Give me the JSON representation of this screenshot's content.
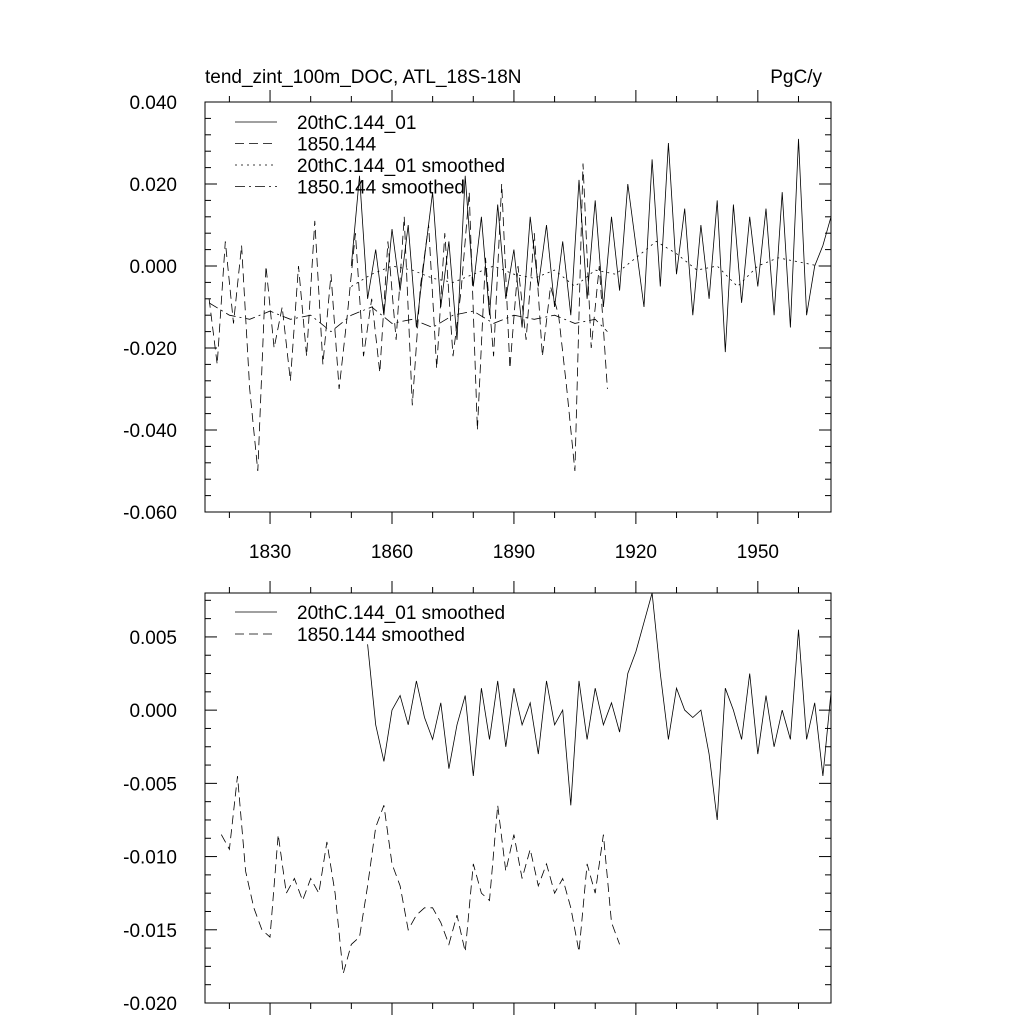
{
  "chart_data": [
    {
      "type": "line",
      "title": "tend_zint_100m_DOC, ATL_18S-18N",
      "units": "PgC/y",
      "xlabel": "",
      "ylabel": "",
      "xlim": [
        1814,
        1968
      ],
      "ylim": [
        -0.06,
        0.04
      ],
      "xticks": [
        1830,
        1860,
        1890,
        1920,
        1950
      ],
      "xtick_labels": [
        "1830",
        "1860",
        "1890",
        "1920",
        "1950"
      ],
      "yticks": [
        -0.06,
        -0.04,
        -0.02,
        0.0,
        0.02,
        0.04
      ],
      "ytick_labels": [
        "-0.060",
        "-0.040",
        "-0.020",
        "0.000",
        "0.020",
        "0.040"
      ],
      "legend": "top-left",
      "series": [
        {
          "name": "20thC.144_01",
          "style": "solid",
          "x": [
            1850,
            1852,
            1854,
            1856,
            1858,
            1860,
            1862,
            1864,
            1866,
            1868,
            1870,
            1872,
            1874,
            1876,
            1878,
            1880,
            1882,
            1884,
            1886,
            1888,
            1890,
            1892,
            1894,
            1896,
            1898,
            1900,
            1902,
            1904,
            1906,
            1908,
            1910,
            1912,
            1914,
            1916,
            1918,
            1920,
            1922,
            1924,
            1926,
            1928,
            1930,
            1932,
            1934,
            1936,
            1938,
            1940,
            1942,
            1944,
            1946,
            1948,
            1950,
            1952,
            1954,
            1956,
            1958,
            1960,
            1962,
            1964,
            1966,
            1968
          ],
          "values": [
            0.0,
            0.022,
            -0.008,
            0.004,
            -0.012,
            0.009,
            -0.006,
            0.01,
            -0.015,
            0.002,
            0.018,
            -0.01,
            0.006,
            -0.018,
            0.022,
            -0.005,
            0.012,
            -0.012,
            0.015,
            -0.008,
            0.004,
            -0.015,
            0.012,
            -0.005,
            0.01,
            -0.01,
            0.006,
            -0.012,
            0.021,
            -0.008,
            0.016,
            -0.01,
            0.012,
            -0.006,
            0.02,
            0.005,
            -0.01,
            0.026,
            -0.005,
            0.03,
            -0.002,
            0.014,
            -0.012,
            0.01,
            -0.008,
            0.016,
            -0.021,
            0.015,
            -0.009,
            0.012,
            -0.005,
            0.014,
            -0.012,
            0.018,
            -0.015,
            0.031,
            -0.012,
            0.0,
            0.005,
            0.012
          ]
        },
        {
          "name": "1850.144",
          "style": "dashed",
          "x": [
            1815,
            1817,
            1819,
            1821,
            1823,
            1825,
            1827,
            1829,
            1831,
            1833,
            1835,
            1837,
            1839,
            1841,
            1843,
            1845,
            1847,
            1849,
            1851,
            1853,
            1855,
            1857,
            1859,
            1861,
            1863,
            1865,
            1867,
            1869,
            1871,
            1873,
            1875,
            1877,
            1879,
            1881,
            1883,
            1885,
            1887,
            1889,
            1891,
            1893,
            1895,
            1897,
            1899,
            1901,
            1903,
            1905,
            1907,
            1909,
            1911,
            1913
          ],
          "values": [
            -0.008,
            -0.024,
            0.006,
            -0.014,
            0.005,
            -0.03,
            -0.05,
            0.0,
            -0.02,
            -0.01,
            -0.028,
            0.0,
            -0.022,
            0.011,
            -0.024,
            -0.002,
            -0.03,
            -0.012,
            0.008,
            -0.022,
            -0.008,
            -0.026,
            0.006,
            -0.018,
            0.012,
            -0.034,
            -0.005,
            0.01,
            -0.025,
            0.008,
            -0.022,
            -0.006,
            0.018,
            -0.04,
            0.002,
            -0.022,
            0.02,
            -0.025,
            0.0,
            -0.018,
            0.008,
            -0.022,
            -0.005,
            -0.012,
            -0.03,
            -0.05,
            0.025,
            -0.02,
            0.0,
            -0.03
          ]
        },
        {
          "name": "20thC.144_01 smoothed",
          "style": "dotted",
          "x": [
            1850,
            1855,
            1860,
            1865,
            1870,
            1875,
            1880,
            1885,
            1890,
            1895,
            1900,
            1905,
            1910,
            1915,
            1920,
            1925,
            1930,
            1935,
            1940,
            1945,
            1950,
            1955,
            1960,
            1965
          ],
          "values": [
            -0.005,
            -0.002,
            0.0,
            -0.001,
            -0.003,
            -0.004,
            -0.002,
            0.0,
            -0.002,
            -0.003,
            -0.001,
            -0.005,
            -0.001,
            -0.002,
            0.002,
            0.006,
            0.003,
            -0.001,
            0.0,
            -0.005,
            0.0,
            0.002,
            0.001,
            0.0
          ]
        },
        {
          "name": "1850.144 smoothed",
          "style": "dashdot",
          "x": [
            1815,
            1820,
            1825,
            1830,
            1835,
            1840,
            1845,
            1850,
            1855,
            1860,
            1865,
            1870,
            1875,
            1880,
            1885,
            1890,
            1895,
            1900,
            1905,
            1910,
            1913
          ],
          "values": [
            -0.009,
            -0.012,
            -0.013,
            -0.011,
            -0.013,
            -0.012,
            -0.016,
            -0.012,
            -0.01,
            -0.014,
            -0.013,
            -0.015,
            -0.012,
            -0.011,
            -0.014,
            -0.012,
            -0.013,
            -0.012,
            -0.014,
            -0.013,
            -0.016
          ]
        }
      ]
    },
    {
      "type": "line",
      "title": "",
      "xlabel": "",
      "ylabel": "",
      "xlim": [
        1814,
        1968
      ],
      "ylim": [
        -0.02,
        0.008
      ],
      "xticks": [
        1830,
        1860,
        1890,
        1920,
        1950
      ],
      "yticks": [
        -0.02,
        -0.015,
        -0.01,
        -0.005,
        0.0,
        0.005
      ],
      "ytick_labels": [
        "-0.020",
        "-0.015",
        "-0.010",
        "-0.005",
        "0.000",
        "0.005"
      ],
      "legend": "top-left",
      "series": [
        {
          "name": "20thC.144_01 smoothed",
          "style": "solid",
          "x": [
            1854,
            1856,
            1858,
            1860,
            1862,
            1864,
            1866,
            1868,
            1870,
            1872,
            1874,
            1876,
            1878,
            1880,
            1882,
            1884,
            1886,
            1888,
            1890,
            1892,
            1894,
            1896,
            1898,
            1900,
            1902,
            1904,
            1906,
            1908,
            1910,
            1912,
            1914,
            1916,
            1918,
            1920,
            1922,
            1924,
            1926,
            1928,
            1930,
            1932,
            1934,
            1936,
            1938,
            1940,
            1942,
            1944,
            1946,
            1948,
            1950,
            1952,
            1954,
            1956,
            1958,
            1960,
            1962,
            1964,
            1966,
            1968
          ],
          "values": [
            0.0045,
            -0.001,
            -0.0035,
            0.0,
            0.001,
            -0.001,
            0.002,
            -0.0005,
            -0.002,
            0.0005,
            -0.004,
            -0.001,
            0.001,
            -0.0045,
            0.0015,
            -0.002,
            0.002,
            -0.0025,
            0.0015,
            -0.001,
            0.0005,
            -0.003,
            0.002,
            -0.001,
            0.0,
            -0.0065,
            0.002,
            -0.002,
            0.0015,
            -0.001,
            0.0005,
            -0.0015,
            0.0025,
            0.004,
            0.006,
            0.008,
            0.0025,
            -0.002,
            0.0015,
            0.0,
            -0.0005,
            0.0,
            -0.003,
            -0.0075,
            0.0015,
            0.0,
            -0.002,
            0.0025,
            -0.003,
            0.001,
            -0.0025,
            0.0,
            -0.002,
            0.0055,
            -0.002,
            0.0005,
            -0.0045,
            0.0012
          ]
        },
        {
          "name": "1850.144 smoothed",
          "style": "dashed",
          "x": [
            1818,
            1820,
            1822,
            1824,
            1826,
            1828,
            1830,
            1832,
            1834,
            1836,
            1838,
            1840,
            1842,
            1844,
            1846,
            1848,
            1850,
            1852,
            1854,
            1856,
            1858,
            1860,
            1862,
            1864,
            1866,
            1868,
            1870,
            1872,
            1874,
            1876,
            1878,
            1880,
            1882,
            1884,
            1886,
            1888,
            1890,
            1892,
            1894,
            1896,
            1898,
            1900,
            1902,
            1904,
            1906,
            1908,
            1910,
            1912,
            1914,
            1916
          ],
          "values": [
            -0.0085,
            -0.0095,
            -0.0045,
            -0.011,
            -0.0135,
            -0.015,
            -0.0155,
            -0.0085,
            -0.0125,
            -0.0115,
            -0.013,
            -0.0115,
            -0.0125,
            -0.009,
            -0.0125,
            -0.018,
            -0.016,
            -0.0155,
            -0.012,
            -0.008,
            -0.0065,
            -0.0105,
            -0.012,
            -0.015,
            -0.014,
            -0.0135,
            -0.0135,
            -0.0145,
            -0.016,
            -0.014,
            -0.0165,
            -0.0105,
            -0.0125,
            -0.013,
            -0.0065,
            -0.011,
            -0.0085,
            -0.0115,
            -0.0095,
            -0.012,
            -0.0105,
            -0.0125,
            -0.0115,
            -0.0135,
            -0.0165,
            -0.0105,
            -0.0125,
            -0.0085,
            -0.0145,
            -0.016
          ]
        }
      ]
    }
  ]
}
